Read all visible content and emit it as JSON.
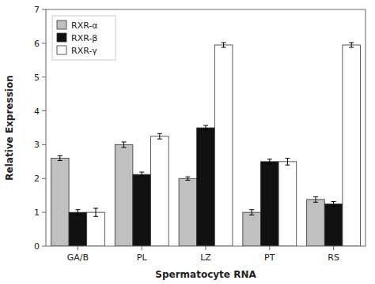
{
  "chart_data": {
    "type": "bar",
    "categories": [
      "GA/B",
      "PL",
      "LZ",
      "PT",
      "RS"
    ],
    "series": [
      {
        "name": "RXR-α",
        "color": "#c0c0c0",
        "values": [
          2.6,
          3.0,
          2.0,
          1.0,
          1.38
        ],
        "errors": [
          0.07,
          0.08,
          0.05,
          0.08,
          0.08
        ]
      },
      {
        "name": "RXR-β",
        "color": "#111111",
        "values": [
          1.0,
          2.12,
          3.5,
          2.5,
          1.25
        ],
        "errors": [
          0.08,
          0.07,
          0.07,
          0.07,
          0.07
        ]
      },
      {
        "name": "RXR-γ",
        "color": "#ffffff",
        "values": [
          1.0,
          3.25,
          5.95,
          2.5,
          5.95
        ],
        "errors": [
          0.12,
          0.08,
          0.07,
          0.1,
          0.07
        ]
      }
    ],
    "ylabel": "Relative Expression",
    "xlabel": "Spermatocyte RNA",
    "ylim": [
      0,
      7
    ],
    "yticks": [
      0,
      1,
      2,
      3,
      4,
      5,
      6,
      7
    ],
    "grid": false,
    "legend": "upper-left"
  }
}
